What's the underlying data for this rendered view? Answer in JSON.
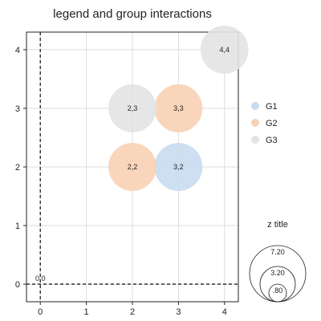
{
  "chart_data": {
    "type": "scatter",
    "title": "legend and group interactions",
    "xlabel": "",
    "ylabel": "",
    "xlim": [
      -0.3,
      4.3
    ],
    "ylim": [
      -0.3,
      4.3
    ],
    "x_ticks": [
      0,
      1,
      2,
      3,
      4
    ],
    "y_ticks": [
      0,
      1,
      2,
      3,
      4
    ],
    "grid": true,
    "legend_placement": "right",
    "series": [
      {
        "name": "G1",
        "color": "#c8dcf0",
        "points": [
          {
            "x": 3,
            "y": 2,
            "z": 3.2,
            "label": "3,2"
          }
        ]
      },
      {
        "name": "G2",
        "color": "#f8d2b4",
        "points": [
          {
            "x": 2,
            "y": 2,
            "z": 2.2,
            "label": "2,2"
          },
          {
            "x": 3,
            "y": 3,
            "z": 3.3,
            "label": "3,3"
          }
        ]
      },
      {
        "name": "G3",
        "color": "#e3e3e3",
        "points": [
          {
            "x": 2,
            "y": 3,
            "z": 2.3,
            "label": "2,3"
          },
          {
            "x": 4,
            "y": 4,
            "z": 4.4,
            "label": "4,4"
          },
          {
            "x": 0,
            "y": 0,
            "z": 0,
            "label": "0,0"
          }
        ]
      }
    ],
    "reference_lines": {
      "vertical_x": 0,
      "horizontal_y": 0,
      "style": "dashed"
    },
    "size_legend": {
      "title": "z title",
      "entries": [
        {
          "label": "7.20",
          "value": 7.2
        },
        {
          "label": "3.20",
          "value": 3.2
        },
        {
          "label": ".80",
          "value": 0.8
        }
      ]
    }
  }
}
